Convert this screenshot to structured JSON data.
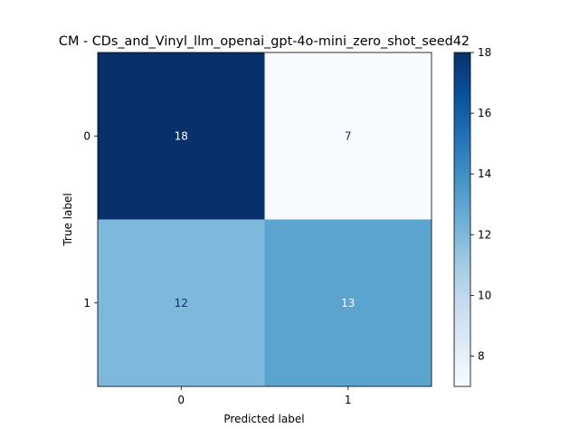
{
  "chart_data": {
    "type": "heatmap",
    "title": "CM - CDs_and_Vinyl_llm_openai_gpt-4o-mini_zero_shot_seed42",
    "xlabel": "Predicted label",
    "ylabel": "True label",
    "x_categories": [
      "0",
      "1"
    ],
    "y_categories": [
      "0",
      "1"
    ],
    "matrix": [
      [
        18,
        7
      ],
      [
        12,
        13
      ]
    ],
    "colormap": "Blues",
    "colorbar": {
      "range": [
        7,
        18
      ],
      "ticks": [
        "8",
        "10",
        "12",
        "14",
        "16",
        "18"
      ]
    }
  }
}
